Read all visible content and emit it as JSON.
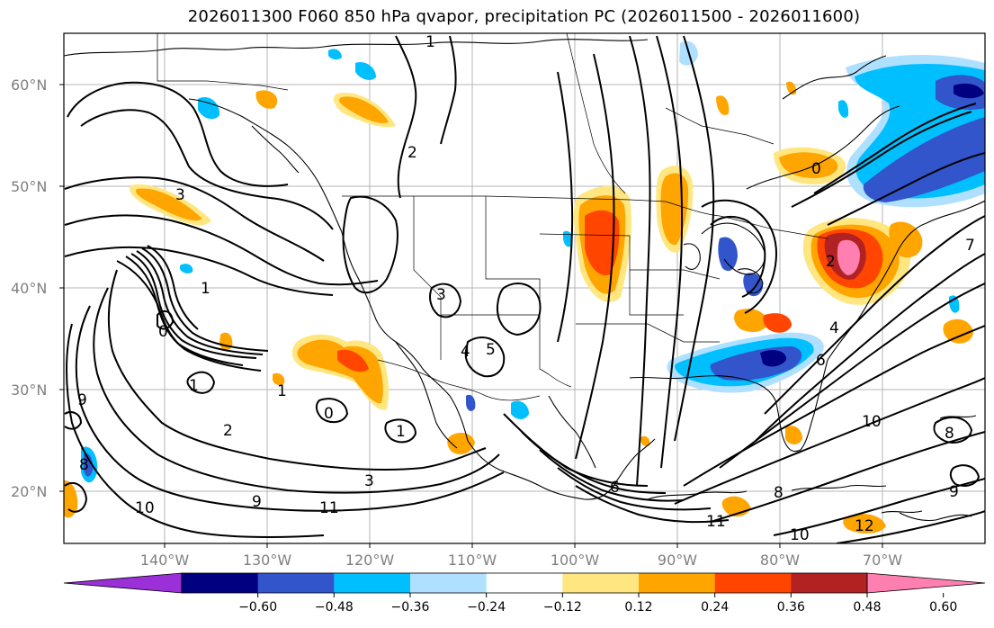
{
  "title": "2026011300 F060 850 hPa qvapor, precipitation PC (2026011500 - 2026011600)",
  "lat_labels": [
    "60°N",
    "50°N",
    "40°N",
    "30°N",
    "20°N"
  ],
  "lon_labels": [
    "140°W",
    "130°W",
    "120°W",
    "110°W",
    "100°W",
    "90°W",
    "80°W",
    "70°W"
  ],
  "colorbar": {
    "ticks": [
      "−0.60",
      "−0.48",
      "−0.36",
      "−0.24",
      "−0.12",
      "0.12",
      "0.24",
      "0.36",
      "0.48",
      "0.60"
    ],
    "colors": [
      "#9b30d9",
      "#000080",
      "#3355cc",
      "#00bfff",
      "#b0e0ff",
      "#ffffff",
      "#ffe680",
      "#ffa500",
      "#ff4500",
      "#b22222",
      "#ff80b0"
    ]
  },
  "contour_labels": [
    "1",
    "2",
    "3",
    "1",
    "0",
    "3",
    "5",
    "4",
    "1",
    "1",
    "0",
    "2",
    "1",
    "3",
    "10",
    "9",
    "11",
    "6",
    "9",
    "8",
    "4",
    "6",
    "10",
    "8",
    "9",
    "7",
    "2",
    "0",
    "8",
    "11",
    "10",
    "12"
  ],
  "colors": {
    "contour": "#000000",
    "coast": "#000000",
    "grid": "#b0b0b0"
  }
}
